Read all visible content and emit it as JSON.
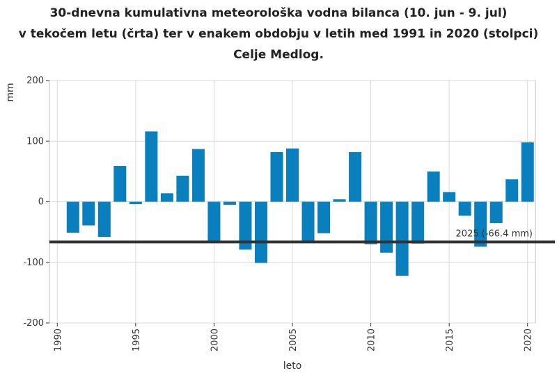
{
  "chart_data": {
    "type": "bar",
    "title_lines": [
      "30-dnevna kumulativna meteorološka vodna bilanca (10. jun - 9. jul)",
      "v tekočem letu (črta) ter v enakem obdobju v letih med 1991 in 2020 (stolpci)",
      "Celje Medlog."
    ],
    "xlabel": "leto",
    "ylabel": "mm",
    "ylim": [
      -200,
      200
    ],
    "xlim": [
      1989.5,
      2020.5
    ],
    "y_ticks": [
      -200,
      -100,
      0,
      100,
      200
    ],
    "x_ticks": [
      1990,
      1995,
      2000,
      2005,
      2010,
      2015,
      2020
    ],
    "grid": true,
    "colors": {
      "bar": "#0a7fbd",
      "line": "#333333",
      "grid": "#d9d9d9"
    },
    "x": [
      1991,
      1992,
      1993,
      1994,
      1995,
      1996,
      1997,
      1998,
      1999,
      2000,
      2001,
      2002,
      2003,
      2004,
      2005,
      2006,
      2007,
      2008,
      2009,
      2010,
      2011,
      2012,
      2013,
      2014,
      2015,
      2016,
      2017,
      2018,
      2019,
      2020
    ],
    "values": [
      -51,
      -39,
      -58,
      59,
      -4,
      116,
      14,
      43,
      87,
      -67,
      -5,
      -79,
      -101,
      82,
      88,
      -67,
      -52,
      4,
      82,
      -70,
      -84,
      -122,
      -69,
      50,
      16,
      -23,
      -74,
      -35,
      37,
      98
    ],
    "reference_line": {
      "value": -66.4,
      "label": "2025 (-66.4 mm)"
    }
  }
}
